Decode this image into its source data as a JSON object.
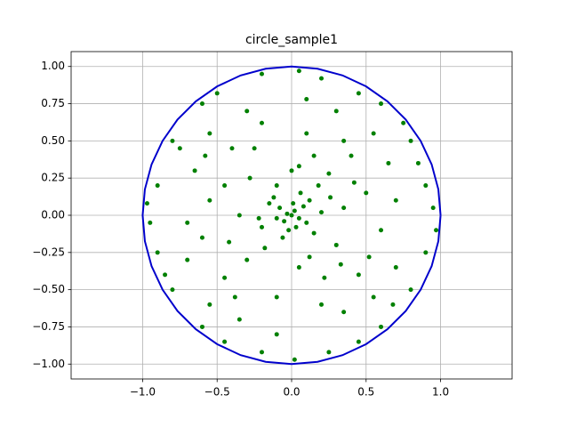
{
  "chart_data": {
    "type": "scatter",
    "title": "circle_sample1",
    "xlim": [
      -1.48,
      1.48
    ],
    "ylim": [
      -1.1,
      1.1
    ],
    "grid": true,
    "xticks": [
      {
        "value": -1,
        "label": "−1.0"
      },
      {
        "value": -0.5,
        "label": "−0.5"
      },
      {
        "value": 0,
        "label": "0.0"
      },
      {
        "value": 0.5,
        "label": "0.5"
      },
      {
        "value": 1,
        "label": "1.0"
      }
    ],
    "yticks": [
      {
        "value": -1,
        "label": "−1.00"
      },
      {
        "value": -0.75,
        "label": "−0.75"
      },
      {
        "value": -0.5,
        "label": "−0.50"
      },
      {
        "value": -0.25,
        "label": "−0.25"
      },
      {
        "value": 0,
        "label": "0.00"
      },
      {
        "value": 0.25,
        "label": "0.25"
      },
      {
        "value": 0.5,
        "label": "0.50"
      },
      {
        "value": 0.75,
        "label": "0.75"
      },
      {
        "value": 1,
        "label": "1.00"
      }
    ],
    "series": [
      {
        "type": "scatter",
        "color": "#008000",
        "x": [
          0,
          0.02,
          -0.03,
          0.05,
          -0.05,
          0.01,
          -0.08,
          0.08,
          0.03,
          -0.02,
          0.1,
          -0.1,
          0.12,
          -0.12,
          0.06,
          -0.06,
          0.15,
          -0.15,
          0.2,
          -0.2,
          0.18,
          -0.18,
          0,
          0.05,
          0.3,
          -0.28,
          0.25,
          -0.3,
          0.35,
          -0.35,
          0.4,
          -0.4,
          0.45,
          -0.45,
          0.5,
          -0.55,
          0.1,
          -0.1,
          0.6,
          -0.6,
          0.2,
          -0.2,
          0.3,
          -0.3,
          0.35,
          -0.35,
          0.65,
          -0.65,
          0.7,
          -0.7,
          0.55,
          -0.55,
          0.55,
          -0.55,
          0.15,
          -0.25,
          0.22,
          -0.42,
          0.42,
          -0.45,
          0.8,
          -0.8,
          0.8,
          -0.8,
          0.9,
          -0.9,
          0.9,
          -0.9,
          0.95,
          -0.95,
          0.2,
          -0.2,
          0.25,
          -0.2,
          0.6,
          -0.6,
          0.6,
          -0.6,
          0.75,
          -0.5,
          0.45,
          -0.45,
          0.45,
          0.05,
          0.02,
          0.97,
          -0.97,
          0.85,
          -0.85,
          0.7,
          -0.7,
          0.1,
          -0.1,
          0.35,
          -0.38,
          0.52,
          -0.58,
          0.68,
          -0.75,
          0.12,
          -0.1,
          0.26,
          -0.22,
          0.05,
          0.33
        ],
        "values": [
          0,
          0.03,
          0.01,
          -0.02,
          -0.04,
          0.08,
          0.05,
          0.06,
          -0.08,
          -0.1,
          -0.05,
          -0.02,
          0.1,
          0.12,
          0.15,
          -0.15,
          -0.12,
          0.08,
          0.02,
          -0.08,
          0.2,
          -0.22,
          0.3,
          0.33,
          -0.2,
          0.25,
          0.28,
          -0.3,
          0.05,
          0,
          0.4,
          0.45,
          -0.4,
          -0.42,
          0.15,
          0.1,
          0.55,
          -0.55,
          -0.1,
          -0.15,
          -0.6,
          0.62,
          0.7,
          0.7,
          -0.65,
          -0.7,
          0.35,
          0.3,
          -0.35,
          -0.3,
          0.55,
          0.55,
          -0.55,
          -0.6,
          0.4,
          0.45,
          -0.42,
          -0.18,
          0.22,
          0.2,
          0.5,
          0.5,
          -0.5,
          -0.5,
          0.2,
          0.2,
          -0.25,
          -0.25,
          0.05,
          -0.05,
          0.92,
          0.95,
          -0.92,
          -0.92,
          0.75,
          0.75,
          -0.75,
          -0.75,
          0.62,
          0.82,
          0.82,
          -0.85,
          -0.85,
          0.97,
          -0.97,
          -0.1,
          0.08,
          0.35,
          -0.4,
          0.1,
          -0.05,
          0.78,
          -0.8,
          0.5,
          -0.55,
          -0.28,
          0.4,
          -0.6,
          0.45,
          -0.28,
          0.2,
          0.12,
          -0.02,
          -0.35,
          -0.33
        ]
      },
      {
        "type": "line",
        "color": "#0000cc",
        "x": [
          1,
          0.985,
          0.94,
          0.866,
          0.766,
          0.643,
          0.5,
          0.342,
          0.174,
          0,
          -0.174,
          -0.342,
          -0.5,
          -0.643,
          -0.766,
          -0.866,
          -0.94,
          -0.985,
          -1,
          -0.985,
          -0.94,
          -0.866,
          -0.766,
          -0.643,
          -0.5,
          -0.342,
          -0.174,
          0,
          0.174,
          0.342,
          0.5,
          0.643,
          0.766,
          0.866,
          0.94,
          0.985,
          1
        ],
        "values": [
          0,
          0.174,
          0.342,
          0.5,
          0.643,
          0.766,
          0.866,
          0.94,
          0.985,
          1,
          0.985,
          0.94,
          0.866,
          0.766,
          0.643,
          0.5,
          0.342,
          0.174,
          0,
          -0.174,
          -0.342,
          -0.5,
          -0.643,
          -0.766,
          -0.866,
          -0.94,
          -0.985,
          -1,
          -0.985,
          -0.94,
          -0.866,
          -0.766,
          -0.643,
          -0.5,
          -0.342,
          -0.174,
          0
        ]
      }
    ]
  }
}
